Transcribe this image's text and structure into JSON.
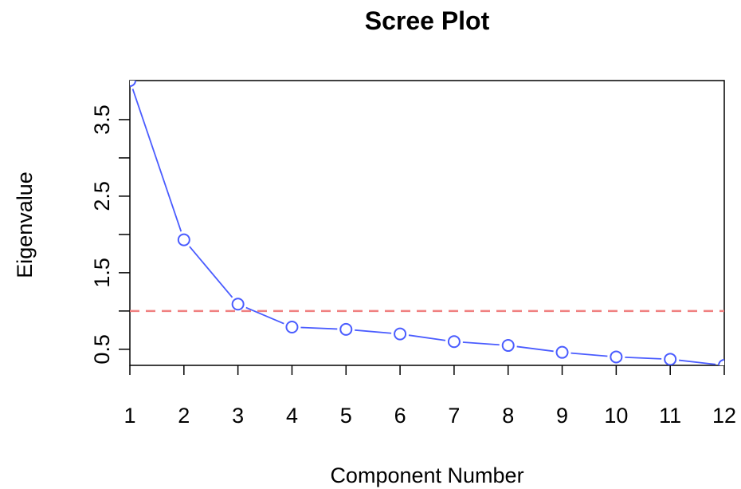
{
  "chart_data": {
    "type": "line",
    "title": "Scree Plot",
    "xlabel": "Component Number",
    "ylabel": "Eigenvalue",
    "x": [
      1,
      2,
      3,
      4,
      5,
      6,
      7,
      8,
      9,
      10,
      11,
      12
    ],
    "series": [
      {
        "values": [
          4.01,
          1.93,
          1.09,
          0.79,
          0.76,
          0.7,
          0.6,
          0.55,
          0.46,
          0.4,
          0.37,
          0.29
        ],
        "color": "#4a5cff"
      }
    ],
    "reference_line": {
      "y": 1.0,
      "style": "dashed",
      "color": "#f08080"
    },
    "xlim": [
      1,
      12
    ],
    "ylim": [
      0.29,
      4.01
    ],
    "x_ticks": [
      "1",
      "2",
      "3",
      "4",
      "5",
      "6",
      "7",
      "8",
      "9",
      "10",
      "11",
      "12"
    ],
    "y_ticks": [
      0.5,
      1.0,
      1.5,
      2.0,
      2.5,
      3.0,
      3.5
    ],
    "y_tick_labels": [
      "0.5",
      "",
      "1.5",
      "",
      "2.5",
      "",
      "3.5"
    ],
    "grid": false,
    "marker": "open-circle"
  }
}
